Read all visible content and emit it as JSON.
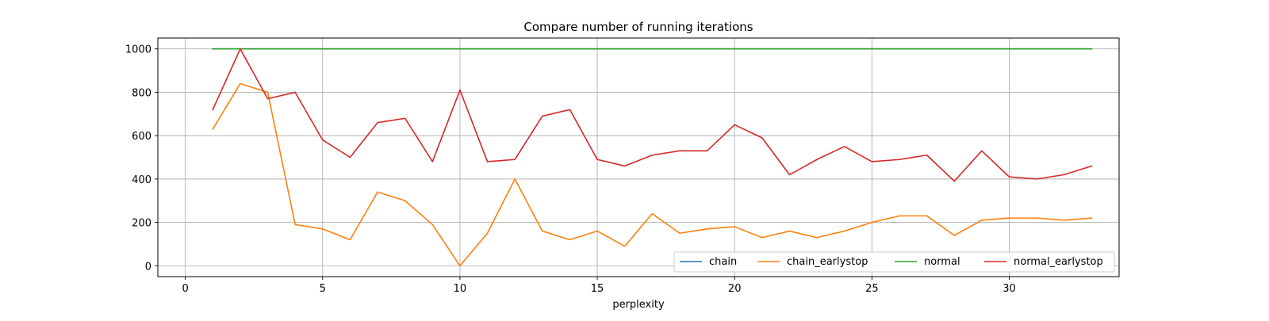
{
  "chart_data": {
    "type": "line",
    "title": "Compare number of running iterations",
    "xlabel": "perplexity",
    "ylabel": "",
    "xlim": [
      -1,
      34
    ],
    "ylim": [
      -50,
      1050
    ],
    "xticks": [
      0,
      5,
      10,
      15,
      20,
      25,
      30
    ],
    "yticks": [
      0,
      200,
      400,
      600,
      800,
      1000
    ],
    "grid": true,
    "legend_position": "lower-right",
    "x": [
      1,
      2,
      3,
      4,
      5,
      6,
      7,
      8,
      9,
      10,
      11,
      12,
      13,
      14,
      15,
      16,
      17,
      18,
      19,
      20,
      21,
      22,
      23,
      24,
      25,
      26,
      27,
      28,
      29,
      30,
      31,
      32,
      33
    ],
    "series": [
      {
        "name": "chain",
        "color": "#1f77b4",
        "values": [
          1000,
          1000,
          1000,
          1000,
          1000,
          1000,
          1000,
          1000,
          1000,
          1000,
          1000,
          1000,
          1000,
          1000,
          1000,
          1000,
          1000,
          1000,
          1000,
          1000,
          1000,
          1000,
          1000,
          1000,
          1000,
          1000,
          1000,
          1000,
          1000,
          1000,
          1000,
          1000,
          1000
        ]
      },
      {
        "name": "chain_earlystop",
        "color": "#ff7f0e",
        "values": [
          630,
          840,
          800,
          190,
          170,
          120,
          340,
          300,
          190,
          0,
          150,
          400,
          160,
          120,
          160,
          90,
          240,
          150,
          170,
          180,
          130,
          160,
          130,
          160,
          200,
          230,
          230,
          140,
          210,
          220,
          220,
          210,
          220
        ]
      },
      {
        "name": "normal",
        "color": "#2ca02c",
        "values": [
          1000,
          1000,
          1000,
          1000,
          1000,
          1000,
          1000,
          1000,
          1000,
          1000,
          1000,
          1000,
          1000,
          1000,
          1000,
          1000,
          1000,
          1000,
          1000,
          1000,
          1000,
          1000,
          1000,
          1000,
          1000,
          1000,
          1000,
          1000,
          1000,
          1000,
          1000,
          1000,
          1000
        ]
      },
      {
        "name": "normal_earlystop",
        "color": "#d62728",
        "values": [
          720,
          1000,
          770,
          800,
          580,
          500,
          660,
          680,
          480,
          810,
          480,
          490,
          690,
          720,
          490,
          460,
          510,
          530,
          530,
          650,
          590,
          420,
          490,
          550,
          480,
          490,
          510,
          390,
          530,
          410,
          400,
          420,
          460
        ]
      }
    ]
  }
}
